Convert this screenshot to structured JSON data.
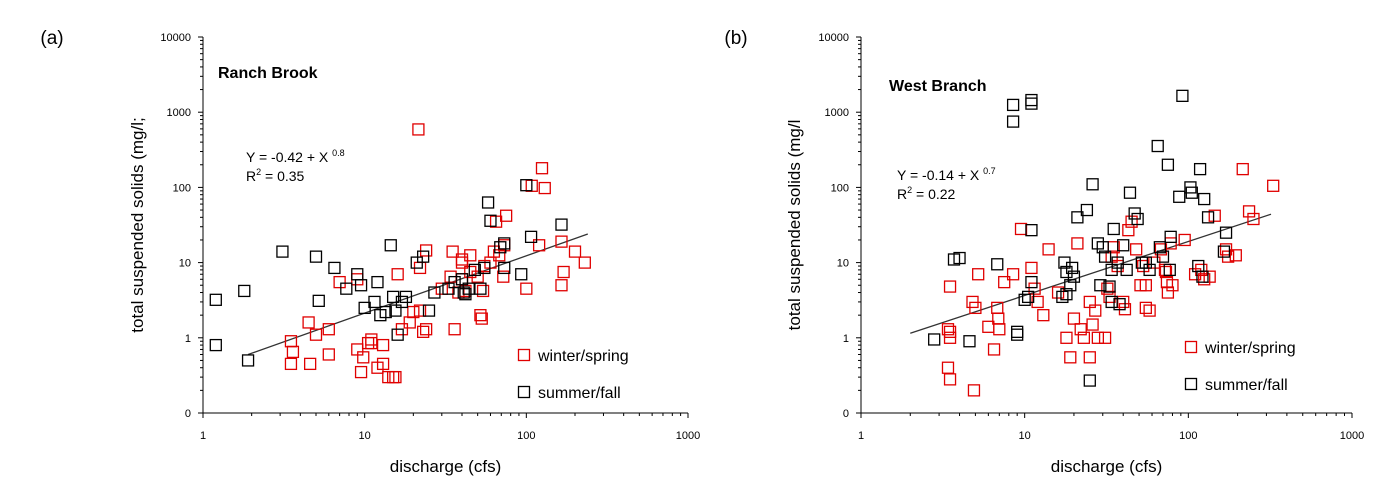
{
  "chart_data": [
    {
      "type": "scatter",
      "panel_label": "(a)",
      "site_label": "Ranch Brook",
      "xlabel": "discharge (cfs)",
      "ylabel": "total suspended solids (mg/l;",
      "xscale": "log",
      "yscale": "log",
      "xlim": [
        1,
        1000
      ],
      "ylim": [
        0.1,
        10000
      ],
      "xticks": [
        1,
        10,
        100,
        1000
      ],
      "xtick_labels": [
        "1",
        "10",
        "100",
        "1000"
      ],
      "yticks": [
        0.1,
        1,
        10,
        100,
        1000,
        10000
      ],
      "ytick_labels": [
        "0",
        "1",
        "10",
        "100",
        "1000",
        "10000"
      ],
      "equation": {
        "text": "Y = -0.42 + X",
        "exponent": "0.8",
        "r2_prefix": "R",
        "r2_sup": "2",
        "r2_text": " = 0.35"
      },
      "fit_line": {
        "x": [
          1.9,
          240
        ],
        "y": [
          0.6,
          24
        ]
      },
      "legend_placement": "bottom-right",
      "series": [
        {
          "name": "winter/spring",
          "color": "#e00000",
          "points": [
            [
              21.5,
              590
            ],
            [
              125,
              180
            ],
            [
              130,
              98
            ],
            [
              108,
              105
            ],
            [
              75,
              42
            ],
            [
              65,
              35
            ],
            [
              24,
              14.5
            ],
            [
              35,
              14
            ],
            [
              40,
              11
            ],
            [
              45,
              12.5
            ],
            [
              60,
              10
            ],
            [
              63,
              14
            ],
            [
              68,
              12.5
            ],
            [
              73,
              17
            ],
            [
              120,
              17
            ],
            [
              165,
              19
            ],
            [
              200,
              14
            ],
            [
              230,
              10
            ],
            [
              170,
              7.5
            ],
            [
              165,
              5
            ],
            [
              100,
              4.5
            ],
            [
              72,
              6.5
            ],
            [
              55,
              9
            ],
            [
              50,
              6.5
            ],
            [
              45,
              7.5
            ],
            [
              40,
              10
            ],
            [
              34,
              6.5
            ],
            [
              30,
              4.5
            ],
            [
              22,
              8.5
            ],
            [
              16,
              7
            ],
            [
              7,
              5.5
            ],
            [
              9,
              6
            ],
            [
              6,
              1.3
            ],
            [
              5,
              1.1
            ],
            [
              3.5,
              0.9
            ],
            [
              3.6,
              0.65
            ],
            [
              3.5,
              0.45
            ],
            [
              4.5,
              1.6
            ],
            [
              4.6,
              0.45
            ],
            [
              6,
              0.6
            ],
            [
              9,
              0.7
            ],
            [
              9.5,
              0.35
            ],
            [
              9.8,
              0.55
            ],
            [
              10.5,
              0.85
            ],
            [
              11,
              0.85
            ],
            [
              11,
              0.95
            ],
            [
              12,
              0.4
            ],
            [
              13,
              0.45
            ],
            [
              13,
              0.8
            ],
            [
              14,
              0.3
            ],
            [
              15,
              0.3
            ],
            [
              15.5,
              0.3
            ],
            [
              17,
              1.3
            ],
            [
              19,
              1.6
            ],
            [
              20,
              2.2
            ],
            [
              22,
              2.3
            ],
            [
              23,
              1.2
            ],
            [
              24,
              1.3
            ],
            [
              36,
              1.3
            ],
            [
              38,
              4
            ],
            [
              40,
              6
            ],
            [
              42,
              4.2
            ],
            [
              52,
              2
            ],
            [
              53,
              1.8
            ],
            [
              54,
              4.2
            ]
          ]
        },
        {
          "name": "summer/fall",
          "color": "#000000",
          "points": [
            [
              1.2,
              3.2
            ],
            [
              1.2,
              0.8
            ],
            [
              1.8,
              4.2
            ],
            [
              1.9,
              0.5
            ],
            [
              3.1,
              14
            ],
            [
              5,
              12
            ],
            [
              5.2,
              3.1
            ],
            [
              6.5,
              8.5
            ],
            [
              7.7,
              4.5
            ],
            [
              9,
              7
            ],
            [
              9.5,
              5
            ],
            [
              10,
              2.5
            ],
            [
              11.5,
              3
            ],
            [
              12,
              5.5
            ],
            [
              12.5,
              2
            ],
            [
              13.5,
              2.2
            ],
            [
              14.5,
              17
            ],
            [
              15,
              3.5
            ],
            [
              15.5,
              2.3
            ],
            [
              16,
              1.1
            ],
            [
              17,
              3
            ],
            [
              18,
              3.5
            ],
            [
              21,
              10
            ],
            [
              23,
              12
            ],
            [
              25,
              2.3
            ],
            [
              27,
              4
            ],
            [
              33,
              4.5
            ],
            [
              36,
              5.5
            ],
            [
              40,
              6
            ],
            [
              41,
              4
            ],
            [
              42,
              3.8
            ],
            [
              44,
              4.5
            ],
            [
              48,
              8
            ],
            [
              52,
              4.5
            ],
            [
              55,
              8.5
            ],
            [
              58,
              63
            ],
            [
              60,
              36
            ],
            [
              69,
              16
            ],
            [
              73,
              18
            ],
            [
              73,
              8.5
            ],
            [
              93,
              7
            ],
            [
              100,
              107
            ],
            [
              107,
              22
            ],
            [
              165,
              32
            ]
          ]
        }
      ]
    },
    {
      "type": "scatter",
      "panel_label": "(b)",
      "site_label": "West Branch",
      "xlabel": "discharge (cfs)",
      "ylabel": "total suspended solids (mg/l",
      "xscale": "log",
      "yscale": "log",
      "xlim": [
        1,
        1000
      ],
      "ylim": [
        0.1,
        10000
      ],
      "xticks": [
        1,
        10,
        100,
        1000
      ],
      "xtick_labels": [
        "1",
        "10",
        "100",
        "1000"
      ],
      "yticks": [
        0.1,
        1,
        10,
        100,
        1000,
        10000
      ],
      "ytick_labels": [
        "0",
        "1",
        "10",
        "100",
        "1000",
        "10000"
      ],
      "equation": {
        "text": "Y = -0.14 + X",
        "exponent": "0.7",
        "r2_prefix": "R",
        "r2_sup": "2",
        "r2_text": " = 0.22"
      },
      "fit_line": {
        "x": [
          2,
          320
        ],
        "y": [
          1.15,
          44
        ]
      },
      "legend_placement": "bottom-right",
      "series": [
        {
          "name": "winter/spring",
          "color": "#e00000",
          "points": [
            [
              3.5,
              4.8
            ],
            [
              3.4,
              1.3
            ],
            [
              3.5,
              1.2
            ],
            [
              3.5,
              1
            ],
            [
              3.4,
              0.4
            ],
            [
              3.5,
              0.28
            ],
            [
              4.8,
              3
            ],
            [
              5,
              2.5
            ],
            [
              5.2,
              7
            ],
            [
              4.9,
              0.2
            ],
            [
              6,
              1.4
            ],
            [
              6.5,
              0.7
            ],
            [
              6.8,
              2.5
            ],
            [
              6.9,
              1.8
            ],
            [
              7,
              1.3
            ],
            [
              7.5,
              5.5
            ],
            [
              8.5,
              7
            ],
            [
              9.5,
              28
            ],
            [
              11,
              8.5
            ],
            [
              11.5,
              4.5
            ],
            [
              12,
              3
            ],
            [
              13,
              2
            ],
            [
              14,
              15
            ],
            [
              16,
              4
            ],
            [
              18,
              1
            ],
            [
              19,
              0.55
            ],
            [
              20,
              1.8
            ],
            [
              21,
              18
            ],
            [
              22,
              1.3
            ],
            [
              23,
              1
            ],
            [
              25,
              3
            ],
            [
              25,
              0.55
            ],
            [
              26,
              1.5
            ],
            [
              27,
              2.3
            ],
            [
              28,
              1
            ],
            [
              31,
              1
            ],
            [
              32,
              4.5
            ],
            [
              33,
              3.5
            ],
            [
              34,
              12
            ],
            [
              35,
              16
            ],
            [
              37,
              9
            ],
            [
              40,
              3
            ],
            [
              41,
              2.4
            ],
            [
              43,
              27
            ],
            [
              45,
              35
            ],
            [
              48,
              15
            ],
            [
              51,
              5
            ],
            [
              53,
              9
            ],
            [
              55,
              5
            ],
            [
              55,
              2.5
            ],
            [
              58,
              2.3
            ],
            [
              62,
              10
            ],
            [
              68,
              15
            ],
            [
              72,
              8
            ],
            [
              73,
              7.5
            ],
            [
              74,
              5.5
            ],
            [
              75,
              4
            ],
            [
              78,
              18
            ],
            [
              80,
              5
            ],
            [
              95,
              20
            ],
            [
              110,
              7
            ],
            [
              120,
              8
            ],
            [
              125,
              6
            ],
            [
              135,
              6.5
            ],
            [
              145,
              42
            ],
            [
              170,
              15
            ],
            [
              175,
              12
            ],
            [
              195,
              12.5
            ],
            [
              215,
              175
            ],
            [
              235,
              48
            ],
            [
              250,
              38
            ],
            [
              330,
              105
            ]
          ]
        },
        {
          "name": "summer/fall",
          "color": "#000000",
          "points": [
            [
              2.8,
              0.95
            ],
            [
              3.7,
              11
            ],
            [
              4,
              11.5
            ],
            [
              4.6,
              0.9
            ],
            [
              6.8,
              9.5
            ],
            [
              8.5,
              1250
            ],
            [
              8.5,
              750
            ],
            [
              9,
              1.1
            ],
            [
              9,
              1.2
            ],
            [
              10,
              3.2
            ],
            [
              10.5,
              3.5
            ],
            [
              11,
              1300
            ],
            [
              11,
              1450
            ],
            [
              11,
              27
            ],
            [
              11,
              5.5
            ],
            [
              17,
              3.5
            ],
            [
              17.5,
              10
            ],
            [
              18,
              7.5
            ],
            [
              18,
              3.8
            ],
            [
              19,
              5
            ],
            [
              19.5,
              8.5
            ],
            [
              20,
              6.5
            ],
            [
              21,
              40
            ],
            [
              24,
              50
            ],
            [
              25,
              0.27
            ],
            [
              26,
              110
            ],
            [
              28,
              18
            ],
            [
              29,
              5
            ],
            [
              30,
              16
            ],
            [
              31,
              12
            ],
            [
              33,
              4.8
            ],
            [
              34,
              8
            ],
            [
              34,
              3
            ],
            [
              35,
              28
            ],
            [
              37,
              10
            ],
            [
              38,
              2.8
            ],
            [
              40,
              17
            ],
            [
              42,
              8
            ],
            [
              44,
              85
            ],
            [
              47,
              45
            ],
            [
              49,
              38
            ],
            [
              52,
              10
            ],
            [
              55,
              10
            ],
            [
              58,
              8
            ],
            [
              65,
              355
            ],
            [
              67,
              16
            ],
            [
              70,
              12
            ],
            [
              75,
              200
            ],
            [
              77,
              8
            ],
            [
              78,
              22
            ],
            [
              88,
              75
            ],
            [
              92,
              1650
            ],
            [
              103,
              100
            ],
            [
              105,
              85
            ],
            [
              115,
              9
            ],
            [
              118,
              175
            ],
            [
              122,
              6.5
            ],
            [
              125,
              70
            ],
            [
              132,
              40
            ],
            [
              165,
              14
            ],
            [
              170,
              25
            ]
          ]
        }
      ]
    }
  ]
}
